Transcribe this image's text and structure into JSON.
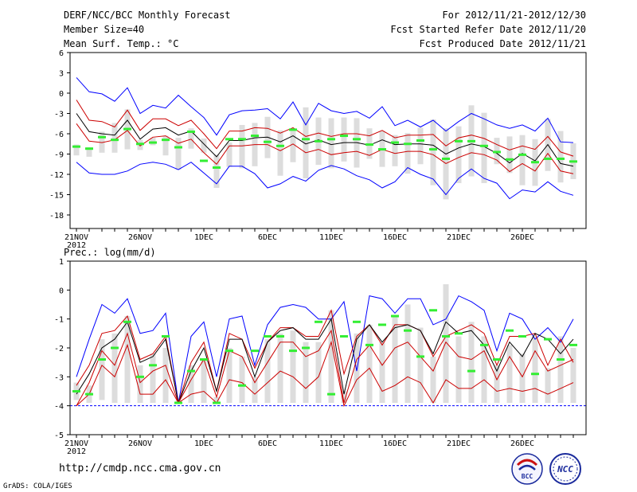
{
  "header": {
    "title": "DERF/NCC/BCC Monthly Forecast",
    "member_size": "Member Size=40",
    "period": "For 2012/11/21-2012/12/30",
    "started": "Fcst Started Refer Date 2012/11/20",
    "produced": "Fcst Produced Date 2012/11/21"
  },
  "footer": {
    "url": "http://cmdp.ncc.cma.gov.cn",
    "grads": "GrADS: COLA/IGES",
    "logo_bcc": "BCC",
    "logo_ncc": "NCC"
  },
  "colors": {
    "envelope": "#0000ff",
    "percentile": "#cc0000",
    "median": "#000000",
    "observation_bar": "#dddddd",
    "member_mark": "#33ee33"
  },
  "chart_data": [
    {
      "type": "line",
      "title": "Mean Surf. Temp.: °C",
      "xlabel": "",
      "ylabel": "°C",
      "ylim": [
        -20,
        6
      ],
      "yticks": [
        6,
        3,
        0,
        -3,
        -6,
        -9,
        -12,
        -15,
        -18
      ],
      "xlabels": [
        {
          "day": 0,
          "label": "21NOV",
          "sub": "2012"
        },
        {
          "day": 5,
          "label": "26NOV"
        },
        {
          "day": 10,
          "label": "1DEC"
        },
        {
          "day": 15,
          "label": "6DEC"
        },
        {
          "day": 20,
          "label": "11DEC"
        },
        {
          "day": 25,
          "label": "16DEC"
        },
        {
          "day": 30,
          "label": "21DEC"
        },
        {
          "day": 35,
          "label": "26DEC"
        }
      ],
      "x": [
        0,
        1,
        2,
        3,
        4,
        5,
        6,
        7,
        8,
        9,
        10,
        11,
        12,
        13,
        14,
        15,
        16,
        17,
        18,
        19,
        20,
        21,
        22,
        23,
        24,
        25,
        26,
        27,
        28,
        29,
        30,
        31,
        32,
        33,
        34,
        35,
        36,
        37,
        38,
        39
      ],
      "series": [
        {
          "name": "max",
          "color": "blue",
          "values": [
            2.3,
            0.2,
            -0.1,
            -1.2,
            0.8,
            -3,
            -1.8,
            -2.2,
            -0.3,
            -2,
            -3.6,
            -6.2,
            -3.2,
            -2.6,
            -2.5,
            -2.3,
            -3.8,
            -1.3,
            -4.7,
            -1.5,
            -2.6,
            -3,
            -2.7,
            -3.7,
            -2,
            -4.8,
            -4,
            -5,
            -4,
            -5.6,
            -4.2,
            -3,
            -3.8,
            -4.7,
            -5.2,
            -4.7,
            -5.6,
            -3.7,
            -7.2,
            -7.3
          ]
        },
        {
          "name": "p90",
          "color": "red",
          "values": [
            -1,
            -4,
            -4.2,
            -5,
            -2.5,
            -5.5,
            -3.8,
            -3.8,
            -4.8,
            -4,
            -6,
            -8.2,
            -5.6,
            -5.6,
            -5.1,
            -5.2,
            -5.9,
            -5.1,
            -6.4,
            -5.9,
            -6.4,
            -6,
            -6,
            -6.3,
            -5.5,
            -6.6,
            -6.2,
            -6.2,
            -6.1,
            -7.8,
            -6.6,
            -6.2,
            -6.7,
            -7.6,
            -8.4,
            -7.8,
            -8.3,
            -6.4,
            -8.7,
            -9.3
          ]
        },
        {
          "name": "median",
          "color": "black",
          "values": [
            -3,
            -5.7,
            -6,
            -6.2,
            -4,
            -6.8,
            -5.3,
            -5.1,
            -6.2,
            -5.6,
            -7.5,
            -9.4,
            -7,
            -7,
            -6.6,
            -6.5,
            -7.2,
            -6.3,
            -7.5,
            -6.9,
            -7.6,
            -7.3,
            -7.3,
            -7.7,
            -6.9,
            -7.6,
            -7.5,
            -7.5,
            -7.7,
            -9,
            -8.1,
            -7.5,
            -7.9,
            -8.9,
            -10.3,
            -8.9,
            -10,
            -7.6,
            -10.4,
            -10.8
          ]
        },
        {
          "name": "p10",
          "color": "red",
          "values": [
            -4.5,
            -7.1,
            -7.3,
            -6.9,
            -5.5,
            -7.8,
            -6.5,
            -6.3,
            -7.4,
            -6.8,
            -8.8,
            -10.5,
            -7.8,
            -7.8,
            -7.6,
            -7.6,
            -8.5,
            -7.5,
            -8.8,
            -8.3,
            -9.1,
            -8.8,
            -8.6,
            -9.2,
            -8.3,
            -8.9,
            -8.6,
            -8.6,
            -9.1,
            -10.4,
            -9.5,
            -8.8,
            -9.1,
            -9.9,
            -11.6,
            -10.4,
            -11.5,
            -8.9,
            -11.5,
            -11.9
          ]
        },
        {
          "name": "min",
          "color": "blue",
          "values": [
            -10.2,
            -11.8,
            -12,
            -12,
            -11.5,
            -10.5,
            -10.2,
            -10.5,
            -11.3,
            -10.2,
            -11.8,
            -13.4,
            -10.8,
            -10.8,
            -11.9,
            -14,
            -13.4,
            -12.3,
            -13,
            -11.4,
            -10.7,
            -11.2,
            -12.2,
            -12.8,
            -14,
            -13.1,
            -11,
            -12,
            -12.7,
            -15,
            -12.6,
            -11.2,
            -12.6,
            -13.3,
            -15.6,
            -14.3,
            -14.6,
            -13.1,
            -14.5,
            -15.1
          ]
        }
      ],
      "bars": {
        "low": [
          -9.2,
          -9.4,
          -8.8,
          -8.8,
          -8.3,
          -8.4,
          -7.7,
          -9.2,
          -11.3,
          -8.2,
          -8.8,
          -14,
          -10.9,
          -11.1,
          -10.8,
          -9.6,
          -12.2,
          -10.2,
          -12.6,
          -10.6,
          -11.1,
          -10.1,
          -11,
          -9.7,
          -10.9,
          -10.8,
          -11.9,
          -10.5,
          -13.6,
          -15.7,
          -13.3,
          -12.3,
          -13.3,
          -10.5,
          -11.8,
          -13.6,
          -13.7,
          -11.5,
          -13.2,
          -12.7
        ],
        "high": [
          -7.6,
          -8,
          -5.7,
          -4.4,
          -2.4,
          -6.9,
          -6.6,
          -6.3,
          -6.6,
          -5.2,
          -6.7,
          -9.1,
          -7.3,
          -4.7,
          -4.4,
          -3.5,
          -5.5,
          -5.2,
          -2.1,
          -3.6,
          -3.7,
          -3.6,
          -3.7,
          -5.2,
          -5.6,
          -6.2,
          -5.9,
          -5.1,
          -3.9,
          -5.2,
          -4.9,
          -1.8,
          -2.9,
          -6.6,
          -6.4,
          -6.2,
          -6.8,
          -3.8,
          -5.6,
          -7.4
        ]
      },
      "marks": [
        -7.9,
        -8.2,
        -6.5,
        -6.9,
        -5.3,
        -7.5,
        -7.3,
        -6.9,
        -8,
        -5.7,
        -10,
        -11,
        -6.8,
        -6.8,
        -6.3,
        -7.2,
        -7.8,
        -5.4,
        -6.8,
        -7.1,
        -6.8,
        -6.3,
        -6.8,
        -7.6,
        -8.3,
        -7.3,
        -7.5,
        -7,
        -8.3,
        -9.7,
        -7.1,
        -7.1,
        -7.8,
        -8.7,
        -9.8,
        -9.1,
        -10.2,
        -9.7,
        -9.7,
        -10.1
      ]
    },
    {
      "type": "line",
      "title": "Prec.: log(mm/d)",
      "xlabel": "",
      "ylabel": "log(mm/d)",
      "ylim": [
        -5,
        1
      ],
      "yticks": [
        1,
        0,
        -1,
        -2,
        -3,
        -4,
        -5
      ],
      "xlabels": [
        {
          "day": 0,
          "label": "21NOV",
          "sub": "2012"
        },
        {
          "day": 5,
          "label": "26NOV"
        },
        {
          "day": 10,
          "label": "1DEC"
        },
        {
          "day": 15,
          "label": "6DEC"
        },
        {
          "day": 20,
          "label": "11DEC"
        },
        {
          "day": 25,
          "label": "16DEC"
        },
        {
          "day": 30,
          "label": "21DEC"
        },
        {
          "day": 35,
          "label": "26DEC"
        }
      ],
      "x": [
        0,
        1,
        2,
        3,
        4,
        5,
        6,
        7,
        8,
        9,
        10,
        11,
        12,
        13,
        14,
        15,
        16,
        17,
        18,
        19,
        20,
        21,
        22,
        23,
        24,
        25,
        26,
        27,
        28,
        29,
        30,
        31,
        32,
        33,
        34,
        35,
        36,
        37,
        38,
        39
      ],
      "series": [
        {
          "name": "max",
          "color": "blue",
          "values": [
            -3,
            -1.7,
            -0.5,
            -0.8,
            -0.3,
            -1.5,
            -1.4,
            -0.8,
            -3.9,
            -1.6,
            -1.1,
            -3,
            -1,
            -0.9,
            -2.6,
            -1.2,
            -0.6,
            -0.5,
            -0.6,
            -1,
            -1,
            -0.4,
            -2.8,
            -0.2,
            -0.3,
            -0.8,
            -0.3,
            -0.3,
            -1.2,
            -1,
            -0.2,
            -0.4,
            -0.7,
            -2.1,
            -0.8,
            -1,
            -1.7,
            -1.3,
            -1.8,
            -1
          ]
        },
        {
          "name": "p90",
          "color": "red",
          "values": [
            -3.3,
            -2.6,
            -1.5,
            -1.4,
            -0.9,
            -2.4,
            -2.2,
            -1.6,
            -3.9,
            -2.5,
            -1.8,
            -3.5,
            -1.5,
            -1.7,
            -2.7,
            -1.8,
            -1.3,
            -1.3,
            -1.6,
            -1.6,
            -0.7,
            -2.9,
            -1.6,
            -1.2,
            -1.9,
            -1.2,
            -1.2,
            -1.4,
            -2.3,
            -1.6,
            -1.4,
            -1.2,
            -1.5,
            -2.6,
            -1.6,
            -1.6,
            -1.5,
            -2.6,
            -1.7,
            -2.5
          ]
        },
        {
          "name": "median",
          "color": "black",
          "values": [
            -3.6,
            -2.9,
            -2,
            -1.7,
            -1.1,
            -2.5,
            -2.3,
            -1.7,
            -3.9,
            -2.8,
            -2,
            -3.5,
            -1.7,
            -1.7,
            -3,
            -1.8,
            -1.4,
            -1.3,
            -1.7,
            -1.7,
            -1,
            -3.6,
            -1.7,
            -1.2,
            -1.8,
            -1.3,
            -1.2,
            -1.4,
            -2.2,
            -1.1,
            -1.5,
            -1.4,
            -1.9,
            -2.8,
            -1.8,
            -2.3,
            -1.5,
            -1.7,
            -2.2,
            -1.7
          ]
        },
        {
          "name": "p10",
          "color": "red",
          "values": [
            -4,
            -3.2,
            -2.1,
            -2.6,
            -1.5,
            -3.2,
            -2.8,
            -2.6,
            -3.9,
            -3.1,
            -2.4,
            -3.7,
            -2.1,
            -2.3,
            -3.2,
            -2.5,
            -1.8,
            -1.8,
            -2.3,
            -2.1,
            -1.4,
            -3.9,
            -2.4,
            -1.9,
            -2.6,
            -2,
            -1.8,
            -2.3,
            -2.8,
            -1.8,
            -2.3,
            -2.4,
            -2.1,
            -3.1,
            -2.3,
            -3,
            -2.1,
            -2.8,
            -2.6,
            -2.4
          ]
        },
        {
          "name": "min",
          "color": "red",
          "values": [
            -4,
            -3.6,
            -2.6,
            -3,
            -1.9,
            -3.6,
            -3.6,
            -3.1,
            -3.9,
            -3.6,
            -3.5,
            -3.9,
            -3.1,
            -3.2,
            -3.6,
            -3.2,
            -2.8,
            -3,
            -3.4,
            -3,
            -1.8,
            -4,
            -3.1,
            -2.7,
            -3.5,
            -3.3,
            -3,
            -3.2,
            -3.9,
            -3.1,
            -3.4,
            -3.4,
            -3.1,
            -3.5,
            -3.4,
            -3.5,
            -3.4,
            -3.6,
            -3.4,
            -3.2
          ]
        }
      ],
      "bars": {
        "low": [
          -3.8,
          -3.9,
          -3.8,
          -3.9,
          -3.9,
          -3.9,
          -3.9,
          -3.9,
          -3.9,
          -3.9,
          -3.9,
          -3.9,
          -3.9,
          -3.9,
          -3.9,
          -3.9,
          -3.9,
          -3.9,
          -3.9,
          -3.9,
          -3.9,
          -3.9,
          -3.9,
          -3.9,
          -3.9,
          -3.9,
          -3.9,
          -3.9,
          -3.9,
          -3.9,
          -3.9,
          -3.9,
          -3.9,
          -3.9,
          -3.9,
          -3.9,
          -3.9,
          -3.9,
          -3.9,
          -3.9
        ],
        "high": [
          -3.2,
          -3.3,
          -1.7,
          -1.5,
          -0.9,
          -2.6,
          -2.2,
          -2,
          -3.8,
          -2.6,
          -2.4,
          -3.7,
          -2,
          -2.3,
          -3,
          -1.7,
          -1.5,
          -1.4,
          -1.8,
          -1.8,
          -0.7,
          -3.5,
          -1.5,
          -1.2,
          -1.8,
          -0.9,
          -0.5,
          -1.3,
          -2.3,
          0.2,
          -1.6,
          -1.1,
          -1.6,
          -2.6,
          -1.9,
          -2.2,
          -1.6,
          -2.7,
          -1.6,
          -2
        ]
      },
      "marks": [
        -3.5,
        -3.6,
        -2.4,
        -2,
        -1.1,
        -3,
        -2.6,
        -1.6,
        -3.9,
        -2.8,
        -2.4,
        -3.9,
        -2.1,
        -3.3,
        -2.1,
        -1.6,
        -1.6,
        -2.1,
        -2,
        -1.1,
        -3.6,
        -1.6,
        -1.1,
        -1.9,
        -1.2,
        -0.9,
        -1.4,
        -2.3,
        -0.7,
        -1.6,
        -1.5,
        -2.8,
        -1.9,
        -2.4,
        -1.4,
        -1.6,
        -2.9,
        -1.7,
        -2.4,
        -1.9
      ]
    }
  ]
}
